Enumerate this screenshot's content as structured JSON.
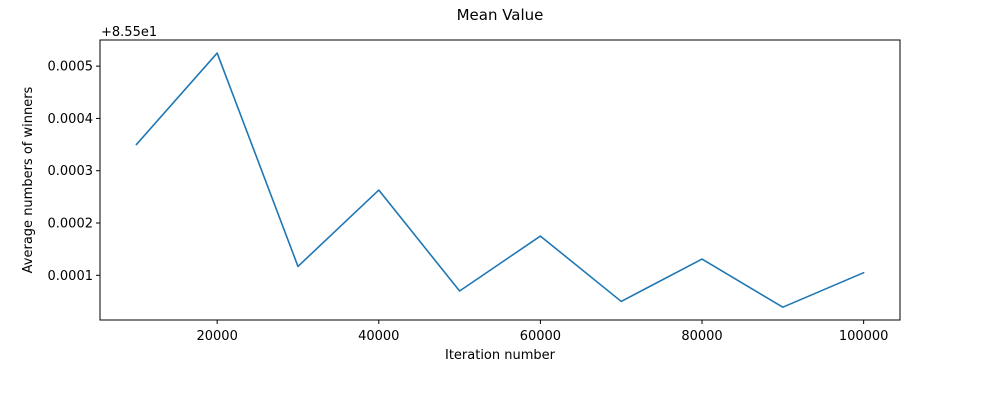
{
  "chart_data": {
    "type": "line",
    "title": "Mean Value",
    "xlabel": "Iteration number",
    "ylabel": "Average numbers of winners",
    "offset_label": "+8.55e1",
    "x_ticks": [
      20000,
      40000,
      60000,
      80000,
      100000
    ],
    "x_tick_labels": [
      "20000",
      "40000",
      "60000",
      "80000",
      "100000"
    ],
    "y_ticks": [
      0.0001,
      0.0002,
      0.0003,
      0.0004,
      0.0005
    ],
    "y_tick_labels": [
      "0.0001",
      "0.0002",
      "0.0003",
      "0.0004",
      "0.0005"
    ],
    "xlim": [
      5500,
      104500
    ],
    "ylim": [
      1.45e-05,
      0.00055
    ],
    "grid": false,
    "series": [
      {
        "color": "#1f77b4",
        "x": [
          10000,
          20000,
          30000,
          40000,
          50000,
          60000,
          70000,
          80000,
          90000,
          100000
        ],
        "y": [
          0.00035,
          0.000525,
          0.000117,
          0.000263,
          7e-05,
          0.000175,
          5e-05,
          0.000131,
          3.9e-05,
          0.000105
        ]
      }
    ]
  }
}
